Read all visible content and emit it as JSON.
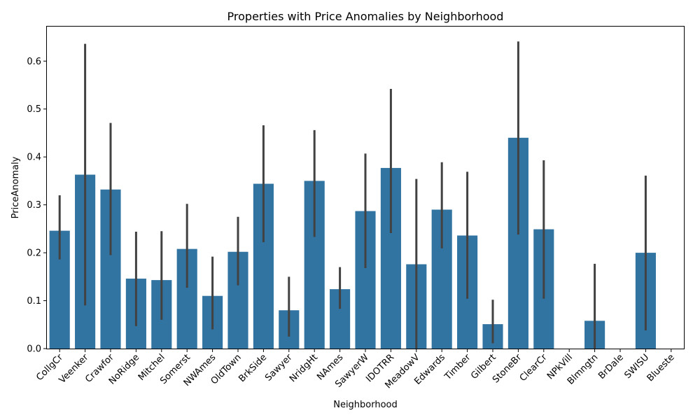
{
  "chart_data": {
    "type": "bar",
    "title": "Properties with Price Anomalies by Neighborhood",
    "xlabel": "Neighborhood",
    "ylabel": "PriceAnomaly",
    "ylim": [
      0,
      0.672
    ],
    "yticks": [
      "0.0",
      "0.1",
      "0.2",
      "0.3",
      "0.4",
      "0.5",
      "0.6"
    ],
    "grid": false,
    "bar_color": "#3274a1",
    "errorbar_color": "#424242",
    "categories": [
      "CollgCr",
      "Veenker",
      "Crawfor",
      "NoRidge",
      "Mitchel",
      "Somerst",
      "NWAmes",
      "OldTown",
      "BrkSide",
      "Sawyer",
      "NridgHt",
      "NAmes",
      "SawyerW",
      "IDOTRR",
      "MeadowV",
      "Edwards",
      "Timber",
      "Gilbert",
      "StoneBr",
      "ClearCr",
      "NPkVill",
      "Blmngtn",
      "BrDale",
      "SWISU",
      "Blueste"
    ],
    "values": [
      0.246,
      0.363,
      0.332,
      0.146,
      0.143,
      0.208,
      0.11,
      0.202,
      0.344,
      0.08,
      0.35,
      0.124,
      0.287,
      0.377,
      0.176,
      0.29,
      0.236,
      0.051,
      0.44,
      0.249,
      0.0,
      0.058,
      0.0,
      0.2,
      0.0
    ],
    "ci_low": [
      0.186,
      0.09,
      0.195,
      0.047,
      0.06,
      0.127,
      0.04,
      0.132,
      0.222,
      0.025,
      0.233,
      0.083,
      0.168,
      0.241,
      0.0,
      0.209,
      0.104,
      0.011,
      0.238,
      0.104,
      0.0,
      0.0,
      0.0,
      0.038,
      0.0
    ],
    "ci_high": [
      0.32,
      0.636,
      0.471,
      0.244,
      0.245,
      0.302,
      0.192,
      0.275,
      0.466,
      0.15,
      0.456,
      0.17,
      0.407,
      0.542,
      0.354,
      0.389,
      0.369,
      0.102,
      0.641,
      0.393,
      0.0,
      0.177,
      0.0,
      0.361,
      0.0
    ]
  }
}
